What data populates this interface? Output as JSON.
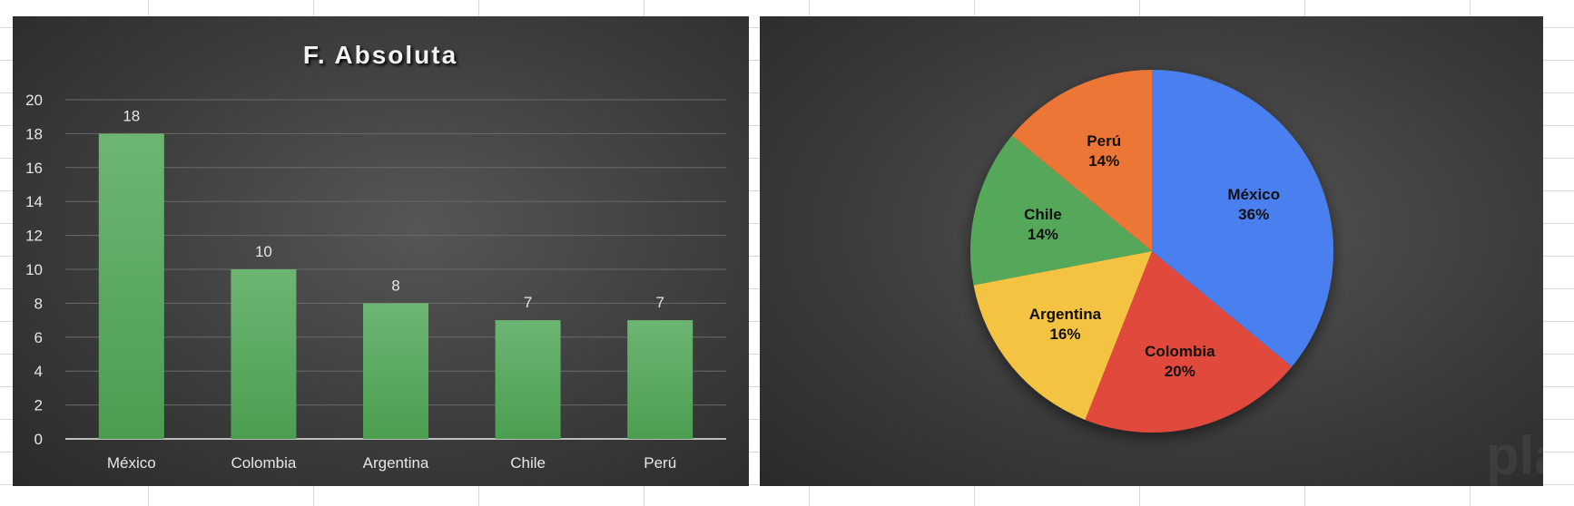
{
  "chart_data": [
    {
      "type": "bar",
      "title": "F. Absoluta",
      "categories": [
        "México",
        "Colombia",
        "Argentina",
        "Chile",
        "Perú"
      ],
      "values": [
        18,
        10,
        8,
        7,
        7
      ],
      "data_labels": [
        "18",
        "10",
        "8",
        "7",
        "7"
      ],
      "ylim": [
        0,
        20
      ],
      "yticks": [
        0,
        2,
        4,
        6,
        8,
        10,
        12,
        14,
        16,
        18,
        20
      ],
      "grid": true,
      "colors": {
        "bar": "#5aab5e",
        "text": "#e6e6e6",
        "grid": "#6a6a6a"
      }
    },
    {
      "type": "pie",
      "categories": [
        "México",
        "Colombia",
        "Argentina",
        "Chile",
        "Perú"
      ],
      "values": [
        18,
        10,
        8,
        7,
        7
      ],
      "data_labels": [
        "36%",
        "20%",
        "16%",
        "14%",
        "14%"
      ],
      "colors": [
        "#4a7fef",
        "#e0493b",
        "#f5c343",
        "#55a85a",
        "#ec7634"
      ]
    }
  ],
  "watermark": "platzi"
}
